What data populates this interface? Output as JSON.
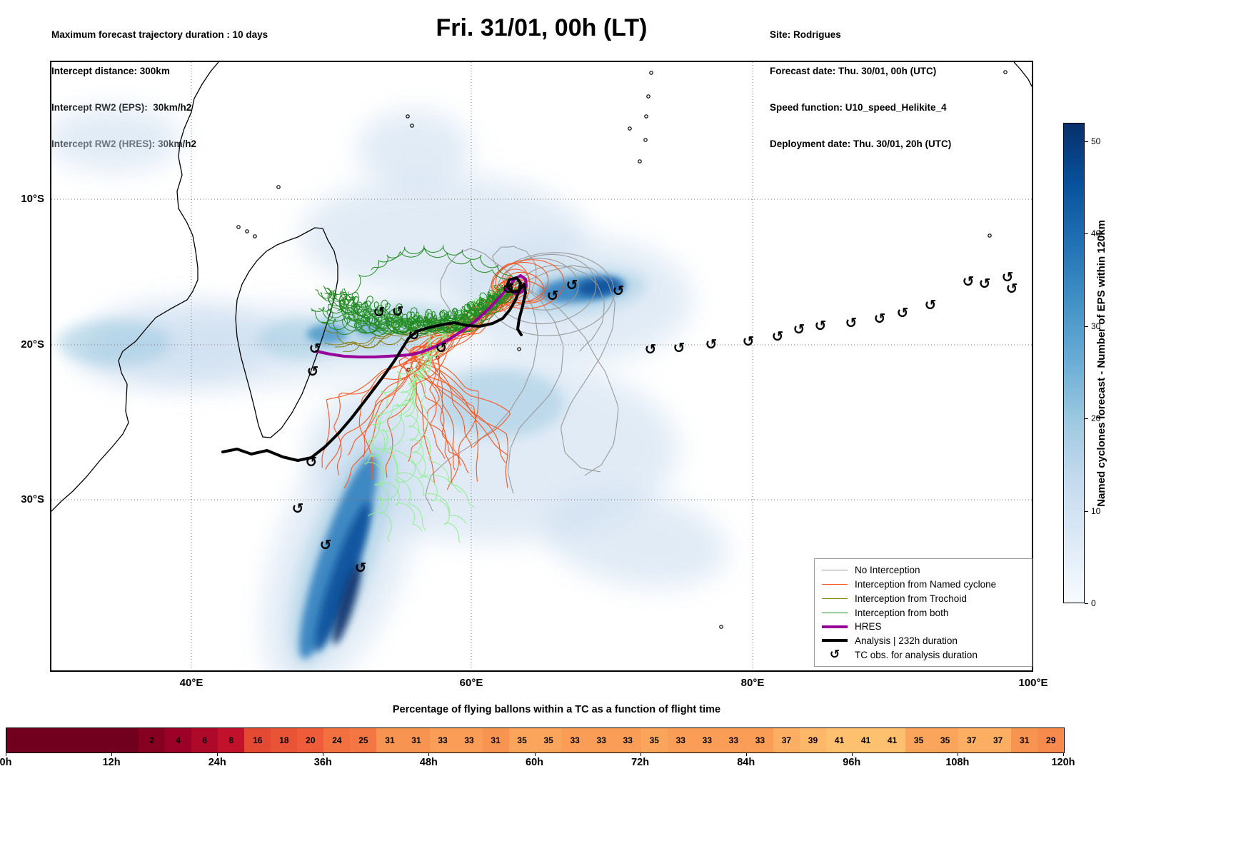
{
  "meta": {
    "top_left": [
      "Maximum forecast trajectory duration : 10 days",
      "Intercept distance: 300km",
      "Intercept RW2 (EPS):  30km/h2",
      "Intercept RW2 (HRES): 30km/h2"
    ],
    "title": "Fri. 31/01, 00h (LT)",
    "top_right": [
      "Site: Rodrigues",
      "Forecast date: Thu. 30/01, 00h (UTC)",
      "Speed function: U10_speed_Helikite_4",
      "Deployment date: Thu. 30/01, 20h (UTC)"
    ]
  },
  "map": {
    "lat_ticks": [
      "10°S",
      "20°S",
      "30°S"
    ],
    "lon_ticks": [
      "40°E",
      "60°E",
      "80°E",
      "100°E"
    ],
    "legend_items": [
      {
        "label": "No Interception",
        "color": "#9a9a9a",
        "style": "thin"
      },
      {
        "label": "Interception from Named cyclone",
        "color": "#f9561d",
        "style": "thin"
      },
      {
        "label": "Interception from Trochoid",
        "color": "#8a7a10",
        "style": "thin"
      },
      {
        "label": "Interception from both",
        "color": "#228b22",
        "style": "thin"
      },
      {
        "label": "HRES",
        "color": "#990099",
        "style": "thick"
      },
      {
        "label": "Analysis | 232h duration",
        "color": "#000000",
        "style": "thick"
      },
      {
        "label": "TC obs. for analysis duration",
        "color": "#000000",
        "style": "symbol",
        "symbol": "↺"
      }
    ],
    "tc_symbol": "↺"
  },
  "colorbar": {
    "label": "Named cyclones forecast - Number of EPS within 120km",
    "ticks": [
      0,
      10,
      20,
      30,
      40,
      50
    ],
    "vmin": 0,
    "vmax": 52,
    "stops": [
      "#f7fbff",
      "#deebf7",
      "#c6dbef",
      "#9ecae1",
      "#6baed6",
      "#4292c6",
      "#2171b5",
      "#08519c",
      "#08306b"
    ]
  },
  "bottom_bar": {
    "title": "Percentage of flying ballons within a TC as a function of flight time",
    "hour_ticks": [
      "0h",
      "12h",
      "24h",
      "36h",
      "48h",
      "60h",
      "72h",
      "84h",
      "96h",
      "108h",
      "120h"
    ],
    "values": [
      null,
      null,
      null,
      null,
      null,
      2,
      4,
      6,
      8,
      16,
      18,
      20,
      24,
      25,
      31,
      31,
      33,
      33,
      31,
      35,
      35,
      33,
      33,
      33,
      35,
      33,
      33,
      33,
      33,
      37,
      39,
      41,
      41,
      41,
      35,
      35,
      37,
      37,
      31,
      29
    ],
    "color_stops": [
      [
        0,
        "#70001e"
      ],
      [
        4,
        "#9c0026"
      ],
      [
        8,
        "#c1122c"
      ],
      [
        16,
        "#e34933"
      ],
      [
        20,
        "#ee5c39"
      ],
      [
        25,
        "#f47642"
      ],
      [
        31,
        "#f89452"
      ],
      [
        35,
        "#fba55c"
      ],
      [
        41,
        "#fdc06e"
      ]
    ]
  },
  "chart_data": [
    {
      "type": "heatmap",
      "name": "balloon_tc_percentage_strip",
      "title": "Percentage of flying ballons within a TC as a function of flight time",
      "xlabel": "flight time",
      "x_ticks": [
        "0h",
        "12h",
        "24h",
        "36h",
        "48h",
        "60h",
        "72h",
        "84h",
        "96h",
        "108h",
        "120h"
      ],
      "x_range_hours": [
        0,
        120
      ],
      "bin_width_hours": 3,
      "values_percent": [
        null,
        null,
        null,
        null,
        null,
        2,
        4,
        6,
        8,
        16,
        18,
        20,
        24,
        25,
        31,
        31,
        33,
        33,
        31,
        35,
        35,
        33,
        33,
        33,
        35,
        33,
        33,
        33,
        33,
        37,
        39,
        41,
        41,
        41,
        35,
        35,
        37,
        37,
        31,
        29
      ]
    },
    {
      "type": "map",
      "name": "cyclone_interception_forecast_map",
      "title": "Fri. 31/01, 00h (LT)",
      "lon_range_deg_east": [
        30,
        100
      ],
      "lat_range_deg": [
        -41,
        -0.5
      ],
      "gridlines": {
        "lat_deg": [
          -10,
          -20,
          -30
        ],
        "lon_deg_east": [
          40,
          60,
          80,
          100
        ]
      },
      "colorbar": {
        "label": "Named cyclones forecast - Number of EPS within 120km",
        "range": [
          0,
          52
        ],
        "ticks": [
          0,
          10,
          20,
          30,
          40,
          50
        ],
        "colormap": "Blues"
      },
      "series": [
        {
          "name": "Analysis | 232h duration",
          "style": "thick black line",
          "points_lonlat": [
            [
              42.3,
              -26.5
            ],
            [
              45.5,
              -26.4
            ],
            [
              48.6,
              -26.9
            ],
            [
              50.5,
              -25.3
            ],
            [
              53.1,
              -22.3
            ],
            [
              55.0,
              -19.8
            ],
            [
              56.9,
              -18.3
            ],
            [
              59.7,
              -18.1
            ],
            [
              62.2,
              -17.7
            ],
            [
              63.4,
              -15.8
            ],
            [
              63.5,
              -15.3
            ],
            [
              62.7,
              -15.1
            ],
            [
              62.9,
              -15.9
            ],
            [
              63.9,
              -16.0
            ],
            [
              63.4,
              -17.7
            ],
            [
              63.6,
              -18.8
            ]
          ]
        },
        {
          "name": "HRES",
          "style": "thick purple line",
          "points_lonlat": [
            [
              49.0,
              -19.8
            ],
            [
              52.0,
              -20.2
            ],
            [
              54.9,
              -20.1
            ],
            [
              57.5,
              -19.5
            ],
            [
              60.5,
              -17.7
            ],
            [
              62.7,
              -15.5
            ],
            [
              63.5,
              -14.8
            ],
            [
              63.9,
              -15.5
            ],
            [
              62.7,
              -15.7
            ]
          ]
        },
        {
          "name": "TC obs. for analysis duration",
          "style": "cyclone symbols",
          "points_lonlat": [
            [
              48.9,
              -19.7
            ],
            [
              48.7,
              -21.2
            ],
            [
              53.4,
              -17.2
            ],
            [
              54.8,
              -17.2
            ],
            [
              55.9,
              -18.8
            ],
            [
              57.9,
              -19.6
            ],
            [
              48.6,
              -27.2
            ],
            [
              47.6,
              -30.3
            ],
            [
              49.6,
              -32.7
            ],
            [
              52.1,
              -34.2
            ],
            [
              62.6,
              -15.7
            ],
            [
              65.8,
              -16.2
            ],
            [
              67.2,
              -15.5
            ],
            [
              70.5,
              -15.8
            ],
            [
              72.8,
              -19.7
            ],
            [
              74.8,
              -19.6
            ],
            [
              77.1,
              -19.4
            ],
            [
              79.7,
              -19.2
            ],
            [
              81.8,
              -18.9
            ],
            [
              83.3,
              -18.4
            ],
            [
              84.9,
              -18.1
            ],
            [
              87.0,
              -18.0
            ],
            [
              89.1,
              -17.7
            ],
            [
              90.7,
              -17.3
            ],
            [
              92.7,
              -16.8
            ],
            [
              95.4,
              -15.2
            ],
            [
              96.6,
              -15.4
            ],
            [
              98.2,
              -14.9
            ],
            [
              98.5,
              -15.7
            ]
          ]
        }
      ],
      "trajectory_classes": [
        {
          "name": "No Interception",
          "color": "#9a9a9a"
        },
        {
          "name": "Interception from Named cyclone",
          "color": "#f9561d"
        },
        {
          "name": "Interception from Trochoid",
          "color": "#8a7a10"
        },
        {
          "name": "Interception from both",
          "color": "#228b22"
        }
      ],
      "density_features": [
        {
          "desc": "EPS density maximum ENE of Madagascar near the named cyclone",
          "center_lonlat": [
            67.9,
            -15.7
          ]
        },
        {
          "desc": "strong EPS density streak heading SSW south of Madagascar",
          "from_lonlat": [
            49.5,
            -27.5
          ],
          "to_lonlat": [
            54.0,
            -40.5
          ]
        },
        {
          "desc": "moderate density band along ~20S in Mozambique Channel",
          "center_lonlat": [
            44.0,
            -19.5
          ]
        }
      ]
    }
  ]
}
